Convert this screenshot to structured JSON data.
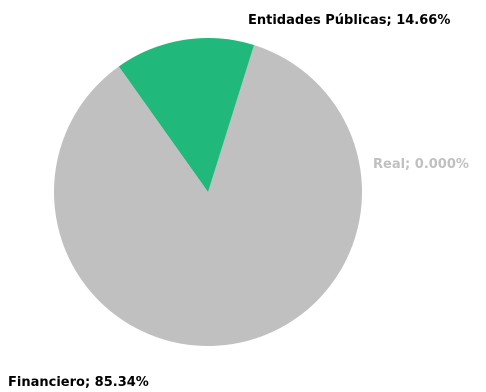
{
  "chart_data": {
    "type": "pie",
    "title": "",
    "slices": [
      {
        "label": "Entidades Públicas; 14.66%",
        "category": "Entidades Públicas",
        "value": 14.66,
        "color": "#21b87b",
        "label_color": "#000000"
      },
      {
        "label": "Real; 0.000%",
        "category": "Real",
        "value": 0.0,
        "color": "#21b87b",
        "label_color": "#c0c0c0"
      },
      {
        "label": "Financiero; 85.34%",
        "category": "Financiero",
        "value": 85.34,
        "color": "#c0c0c0",
        "label_color": "#000000"
      }
    ],
    "start_angle_deg": -35.4,
    "direction": "clockwise"
  }
}
